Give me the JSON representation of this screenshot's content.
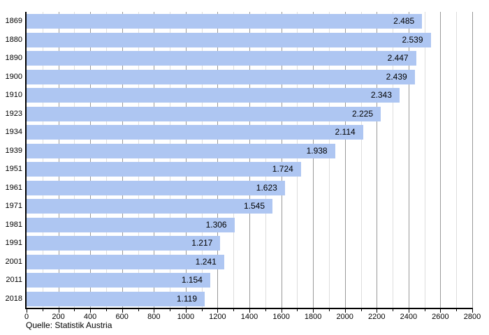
{
  "chart_data": {
    "type": "bar",
    "orientation": "horizontal",
    "title": "",
    "categories": [
      "1869",
      "1880",
      "1890",
      "1900",
      "1910",
      "1923",
      "1934",
      "1939",
      "1951",
      "1961",
      "1971",
      "1981",
      "1991",
      "2001",
      "2011",
      "2018"
    ],
    "values": [
      2485,
      2539,
      2447,
      2439,
      2343,
      2225,
      2114,
      1938,
      1724,
      1623,
      1545,
      1306,
      1217,
      1241,
      1154,
      1119
    ],
    "value_labels": [
      "2.485",
      "2.539",
      "2.447",
      "2.439",
      "2.343",
      "2.225",
      "2.114",
      "1.938",
      "1.724",
      "1.623",
      "1.545",
      "1.306",
      "1.217",
      "1.241",
      "1.154",
      "1.119"
    ],
    "xlim": [
      0,
      2800
    ],
    "x_major_step": 200,
    "x_minor_step": 100,
    "x_tick_labels": [
      "0",
      "200",
      "400",
      "600",
      "800",
      "1000",
      "1200",
      "1400",
      "1600",
      "1800",
      "2000",
      "2200",
      "2400",
      "2600",
      "2800"
    ],
    "grid": true,
    "legend": "none",
    "source": "Quelle: Statistik Austria",
    "colors": {
      "bar_fill": "#AEC6F2",
      "grid_major": "#999999",
      "grid_minor": "#DDDDDD",
      "axis": "#000000",
      "text": "#000000",
      "background": "#FFFFFF"
    }
  }
}
